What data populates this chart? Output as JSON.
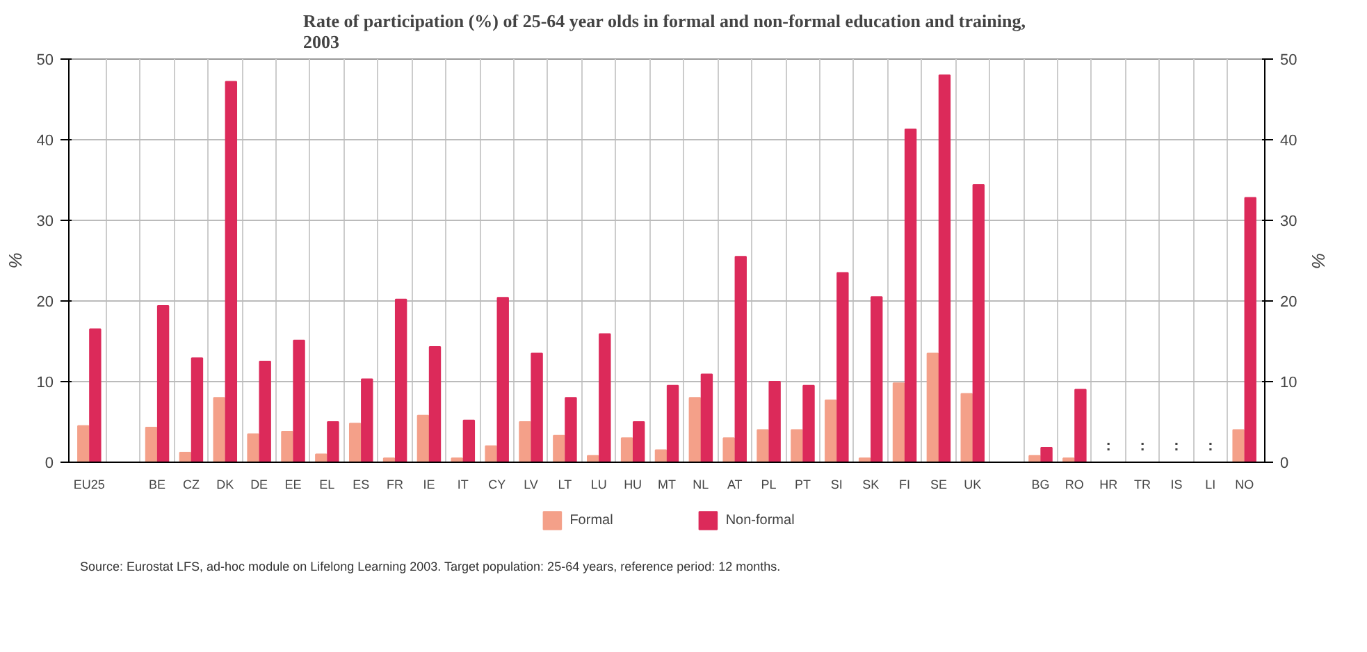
{
  "chart_data": {
    "type": "bar",
    "title": "Rate of participation (%) of  25-64 year olds in formal and non-formal education and training, 2003",
    "ylabel": "%",
    "y2label": "%",
    "categories": [
      "EU25",
      null,
      "BE",
      "CZ",
      "DK",
      "DE",
      "EE",
      "EL",
      "ES",
      "FR",
      "IE",
      "IT",
      "CY",
      "LV",
      "LT",
      "LU",
      "HU",
      "MT",
      "NL",
      "AT",
      "PL",
      "PT",
      "SI",
      "SK",
      "FI",
      "SE",
      "UK",
      null,
      "BG",
      "RO",
      "HR",
      "TR",
      "IS",
      "LI",
      "NO"
    ],
    "series": [
      {
        "name": "Formal",
        "color": "#f4a089",
        "values": [
          4.5,
          null,
          4.3,
          1.2,
          8,
          3.5,
          3.8,
          1,
          4.8,
          0.5,
          5.8,
          0.5,
          2,
          5,
          3.3,
          0.8,
          3,
          1.5,
          8,
          3,
          4,
          4,
          7.7,
          0.5,
          9.8,
          13.5,
          8.5,
          null,
          0.8,
          0.5,
          null,
          null,
          null,
          null,
          4
        ]
      },
      {
        "name": "Non-formal",
        "color": "#dc2a5a",
        "values": [
          16.5,
          null,
          19.4,
          12.9,
          47.2,
          12.5,
          15.1,
          5,
          10.3,
          20.2,
          14.3,
          5.2,
          20.4,
          13.5,
          8,
          15.9,
          5,
          9.5,
          10.9,
          25.5,
          10,
          9.5,
          23.5,
          20.5,
          41.3,
          48,
          34.4,
          null,
          1.8,
          9,
          null,
          null,
          null,
          null,
          32.8
        ],
        "value_labels": [
          null,
          null,
          null,
          null,
          null,
          null,
          null,
          null,
          null,
          null,
          null,
          null,
          null,
          null,
          null,
          null,
          null,
          null,
          null,
          null,
          null,
          null,
          null,
          null,
          null,
          null,
          null,
          null,
          null,
          null,
          ":",
          ":",
          ":",
          ":",
          null
        ]
      }
    ],
    "ylim": [
      0,
      50
    ],
    "yticks": [
      0,
      10,
      20,
      30,
      40,
      50
    ],
    "y2lim": [
      0,
      50
    ],
    "y2ticks": [
      0,
      10,
      20,
      30,
      40,
      50
    ],
    "grid": true,
    "legend": "bottom",
    "annotations": [
      "Source: Eurostat LFS, ad-hoc module on Lifelong Learning 2003. Target population: 25-64 years, reference period: 12 months."
    ]
  }
}
